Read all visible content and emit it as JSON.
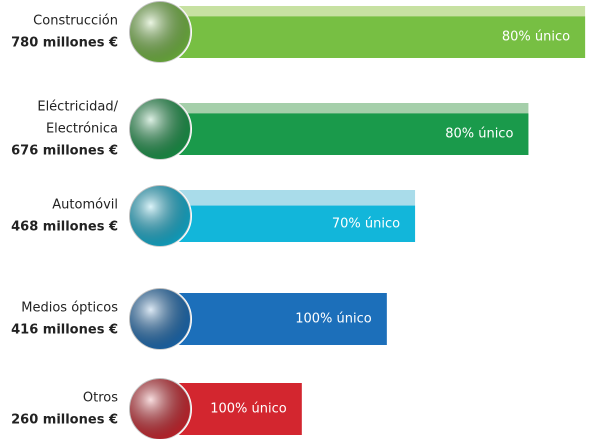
{
  "chart_data": {
    "type": "bar",
    "categories": [
      [
        "Construcción"
      ],
      [
        "Eléctricidad/",
        "Electrónica"
      ],
      [
        "Automóvil"
      ],
      [
        "Medios ópticos"
      ],
      [
        "Otros"
      ]
    ],
    "values": [
      780,
      676,
      468,
      416,
      260
    ],
    "value_labels": [
      "780 millones €",
      "676 millones €",
      "468 millones €",
      "416 millones €",
      "260 millones €"
    ],
    "shares": [
      80,
      80,
      70,
      100,
      100
    ],
    "share_labels": [
      "80% único",
      "80% único",
      "70% único",
      "100% único",
      "100% único"
    ],
    "colors": [
      "#77bf43",
      "#1a9a4b",
      "#12b6da",
      "#1c6fba",
      "#d3262f"
    ],
    "light_colors": [
      "#c7e1a2",
      "#a5cfaa",
      "#a9dcea",
      "#1c6fba",
      "#d3262f"
    ]
  }
}
